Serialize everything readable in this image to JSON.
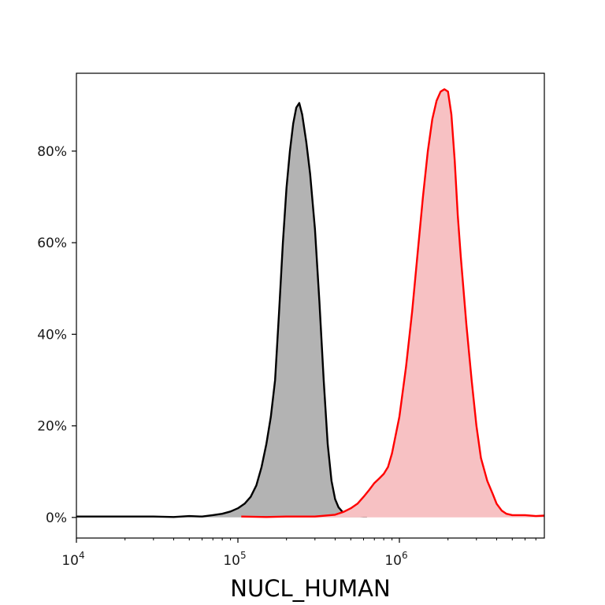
{
  "chart_data": {
    "type": "area",
    "title": "",
    "xlabel": "NUCL_HUMAN",
    "ylabel": "",
    "x_scale": "log",
    "xlim": [
      10000,
      7900000
    ],
    "ylim": [
      -4.5,
      97
    ],
    "x_ticks": [
      {
        "value": 10000,
        "base": "10",
        "exp": "4"
      },
      {
        "value": 100000,
        "base": "10",
        "exp": "5"
      },
      {
        "value": 1000000,
        "base": "10",
        "exp": "6"
      }
    ],
    "y_ticks": [
      {
        "value": 0,
        "label": "0%"
      },
      {
        "value": 20,
        "label": "20%"
      },
      {
        "value": 40,
        "label": "40%"
      },
      {
        "value": 60,
        "label": "60%"
      },
      {
        "value": 80,
        "label": "80%"
      }
    ],
    "grid": false,
    "series": [
      {
        "line_color": "#000000",
        "fill_color": "#b3b3b3",
        "x": [
          10000,
          20000,
          30000,
          40000,
          50000,
          60000,
          70000,
          80000,
          90000,
          100000,
          110000,
          120000,
          130000,
          140000,
          150000,
          160000,
          170000,
          180000,
          190000,
          200000,
          210000,
          220000,
          230000,
          240000,
          250000,
          265000,
          280000,
          300000,
          320000,
          340000,
          360000,
          380000,
          400000,
          420000,
          450000,
          500000,
          550000,
          600000,
          630000
        ],
        "y": [
          0.2,
          0.2,
          0.2,
          0.1,
          0.3,
          0.2,
          0.5,
          0.8,
          1.3,
          2,
          3,
          4.5,
          7,
          11,
          16,
          22,
          30,
          45,
          60,
          72,
          80,
          86,
          89.5,
          90.5,
          88,
          82,
          75,
          63,
          47,
          30,
          16,
          8,
          4,
          2.2,
          1,
          0.4,
          0.3,
          0.2,
          0.2
        ]
      },
      {
        "line_color": "#ff0000",
        "fill_color": "#f7c1c3",
        "x": [
          105000,
          150000,
          200000,
          300000,
          400000,
          450000,
          500000,
          550000,
          600000,
          650000,
          700000,
          750000,
          800000,
          850000,
          900000,
          1000000,
          1100000,
          1200000,
          1300000,
          1400000,
          1500000,
          1600000,
          1700000,
          1800000,
          1900000,
          2000000,
          2100000,
          2200000,
          2300000,
          2400000,
          2600000,
          2800000,
          3000000,
          3200000,
          3500000,
          3800000,
          4000000,
          4300000,
          4600000,
          5000000,
          6000000,
          7000000,
          7900000
        ],
        "y": [
          0.2,
          0.1,
          0.2,
          0.2,
          0.6,
          1.2,
          2,
          3,
          4.5,
          6,
          7.5,
          8.5,
          9.5,
          11,
          14,
          22,
          33,
          45,
          58,
          70,
          80,
          87,
          91,
          93,
          93.5,
          93,
          88,
          78,
          66,
          57,
          42,
          30,
          20,
          13,
          8,
          5,
          3,
          1.5,
          0.8,
          0.5,
          0.5,
          0.3,
          0.4
        ]
      }
    ]
  }
}
